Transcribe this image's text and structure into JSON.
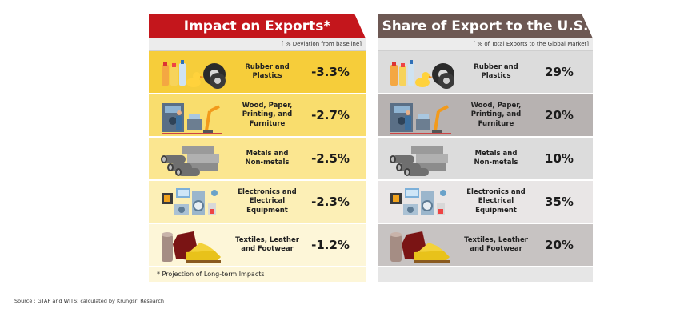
{
  "chart_data": [
    {
      "type": "table",
      "title": "Impact on Exports*",
      "subtitle": "[ % Deviation from baseline]",
      "categories": [
        "Rubber and Plastics",
        "Wood, Paper, Printing, and Furniture",
        "Metals and Non-metals",
        "Electronics and Electrical Equipment",
        "Textiles, Leather and Footwear"
      ],
      "labels": [
        "-3.3%",
        "-2.7%",
        "-2.5%",
        "-2.3%",
        "-1.2%"
      ],
      "values": [
        -3.3,
        -2.7,
        -2.5,
        -2.3,
        -1.2
      ],
      "row_colors": [
        "#f6cd3a",
        "#f9dd6d",
        "#fbe690",
        "#fcefb6",
        "#fdf6d8"
      ],
      "footnote": "* Projection of Long-term Impacts",
      "header_color": "#c4161c"
    },
    {
      "type": "table",
      "title": "Share of Export to the U.S.",
      "subtitle": "[ % of Total Exports to the Global Market]",
      "categories": [
        "Rubber and Plastics",
        "Wood, Paper, Printing, and Furniture",
        "Metals and Non-metals",
        "Electronics and Electrical Equipment",
        "Textiles, Leather and Footwear"
      ],
      "labels": [
        "29%",
        "20%",
        "10%",
        "35%",
        "20%"
      ],
      "values": [
        29,
        20,
        10,
        35,
        20
      ],
      "row_colors": [
        "#dcdcdc",
        "#b7b2b1",
        "#dcdcdc",
        "#e9e6e6",
        "#c7c3c2"
      ],
      "header_color": "#6d5853"
    }
  ],
  "labels": {
    "rows": [
      [
        "Rubber and",
        "Plastics"
      ],
      [
        "Wood, Paper,",
        "Printing, and",
        "Furniture"
      ],
      [
        "Metals and",
        "Non-metals"
      ],
      [
        "Electronics and",
        "Electrical",
        "Equipment"
      ],
      [
        "Textiles, Leather",
        "and Footwear"
      ]
    ]
  },
  "icons": [
    "rubber-plastics-icon",
    "wood-paper-furniture-icon",
    "metals-pipes-icon",
    "electronics-icon",
    "textiles-footwear-icon"
  ],
  "source": "Source : GTAP and WITS; calculated by Krungsri Research"
}
